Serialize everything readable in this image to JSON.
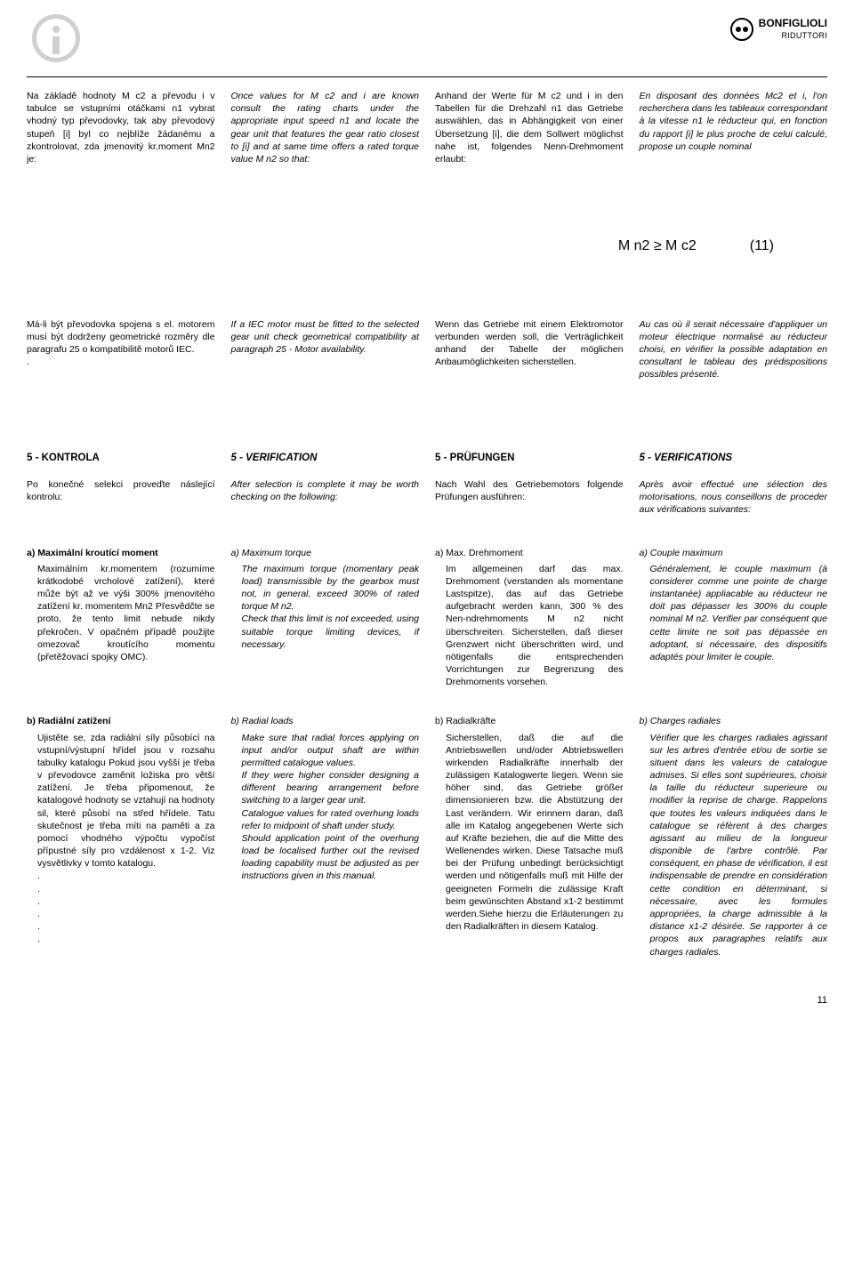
{
  "brand": {
    "name": "BONFIGLIOLI",
    "sub": "RIDUTTORI"
  },
  "block1": {
    "col1": "Na základě hodnoty M c2 a převodu i v tabulce se vstupními otáčkami n1 vybrat vhodný typ převodovky, tak aby převodový stupeň [i] byl co nejblíže žádanému a zkontrolovat, zda jmenovitý kr.moment Mn2 je:",
    "col2": "Once values for M c2 and i are known consult the rating charts under the appropriate input speed n1 and locate the gear unit that features the gear ratio closest to [i] and at same time offers a rated torque value M n2 so that:",
    "col3": "Anhand der Werte für M c2 und i in den Tabellen für die Drehzahl n1 das Getriebe auswählen, das in Abhängigkeit von einer Übersetzung [i], die dem Sollwert möglichst nahe ist, folgendes Nenn-Drehmoment erlaubt:",
    "col4": "En disposant des données Mc2 et i, l'on recherchera dans les tableaux correspondant à la vitesse n1 le réducteur qui, en fonction du rapport [i] le plus proche de celui calculé, propose un couple nominal"
  },
  "formula": {
    "expr": "M n2  ≥  M c2",
    "num": "(11)"
  },
  "block2": {
    "col1": "Má-li být převodovka spojena s el. motorem musí být dodrženy geometrické rozměry dle paragrafu 25 o kompatibilitě motorů IEC.\n.",
    "col2": "If a IEC motor must be fitted to the selected gear unit check geometrical compatibility at paragraph 25 - Motor availability.",
    "col3": "Wenn das Getriebe mit einem Elektromotor verbunden werden soll, die Verträglichkeit anhand der Tabelle der möglichen Anbaumöglichkeiten sicherstellen.",
    "col4": "Au cas où il serait nécessaire d'appliquer un moteur électrique normalisé au réducteur choisi, en vérifier la possible adaptation en consultant le tableau des prédispositions possibles présenté."
  },
  "section": {
    "h1": "5 - KONTROLA",
    "h2": "5 - VERIFICATION",
    "h3": "5 - PRÜFUNGEN",
    "h4": "5 - VERIFICATIONS"
  },
  "intro": {
    "c1": "Po konečné selekci proveďte náslející kontrolu:",
    "c2": "After selection is complete it may be worth checking on the following:",
    "c3": "Nach Wahl des Getriebemotors folgende Prüfungen ausführen:",
    "c4": "Après avoir effectué une sélection des motorisations, nous conseillons de proceder aux vérifications suivantes:"
  },
  "sub_a": {
    "h1": "a) Maximální kroutící moment",
    "h2": "a) Maximum torque",
    "h3": "a) Max. Drehmoment",
    "h4": "a) Couple maximum",
    "c1": "Maximálním kr.momentem (rozumíme krátkodobé vrcholové zatížení), které může být až ve výši 300% jmenovitého zatížení kr. momentem Mn2 Přesvědčte se proto, že tento limit nebude nikdy překročen. V opačném případě použijte omezovač kroutícího momentu (přetěžovací spojky OMC).",
    "c2": "The maximum torque (momentary peak load) transmissible by the gearbox must not, in general, exceed 300% of rated torque M n2.\nCheck that this limit is not exceeded, using suitable torque limiting devices, if necessary.",
    "c3": "Im allgemeinen darf das max. Drehmoment (verstanden als momentane Lastspitze), das auf das Getriebe aufgebracht werden kann, 300 % des Nen-ndrehmoments M n2 nicht überschreiten. Sicherstellen, daß dieser Grenzwert nicht überschritten wird, und nötigenfalls die entsprechenden Vorrichtungen zur Begrenzung des Drehmoments vorsehen.",
    "c4": "Généralement, le couple maximum (à considerer comme une pointe de charge instantanée) appliacable au réducteur ne doit pas dépasser les 300% du couple nominal M n2. Verifier par conséquent que cette limite ne soit pas dépassée en adoptant, si nécessaire, des dispositifs adaptés pour limiter le couple."
  },
  "sub_b": {
    "h1": "b) Radiální zatížení",
    "h2": "b) Radial loads",
    "h3": "b) Radialkräfte",
    "h4": "b) Charges radiales",
    "c1": "Ujistěte se, zda radiální síly působící na vstupní/výstupní hřídel jsou v rozsahu tabulky katalogu Pokud jsou vyšší je třeba v převodovce zaměnit ložiska pro větší zatížení. Je třeba připomenout, že katalogové hodnoty se vztahují na hodnoty sil, které působí na střed hřídele. Tatu skutečnost je třeba míti na paměti a za pomocí vhodného výpočtu vypočíst přípustné síly pro vzdálenost x 1-2. Viz vysvětlivky v tomto katalogu.\n.\n.\n.\n.\n.\n.",
    "c2": "Make sure that radial forces applying on input and/or output shaft are within permitted catalogue values.\nIf they were higher consider designing a different bearing arrangement before switching to a larger gear unit.\nCatalogue values for rated overhung loads refer to midpoint of shaft under study.\nShould application point of the overhung load be localised further out the revised loading capability must be adjusted as per instructions given in this manual.",
    "c3": "Sicherstellen, daß die auf die Antriebswellen und/oder Abtriebswellen wirkenden Radialkräfte innerhalb der zulässigen Katalogwerte liegen. Wenn sie höher sind, das Getriebe größer dimensionieren bzw. die Abstützung der Last verändern. Wir erinnern daran, daß alle im Katalog angegebenen Werte sich auf Kräfte beziehen, die auf die Mitte des Wellenendes wirken. Diese Tatsache muß bei der Prüfung unbedingt berücksichtigt werden und nötigenfalls muß mit Hilfe der geeigneten Formeln die zulässige Kraft beim gewünschten Abstand x1-2 bestimmt werden.Siehe hierzu die Erläuterungen zu den Radialkräften in diesem Katalog.",
    "c4": "Vérifier que les charges radiales agissant sur les arbres d'entrée et/ou de sortie se situent dans les valeurs de catalogue admises. Si elles sont supérieures, choisir la taille du réducteur superieure ou modifier la reprise de charge. Rappelons que toutes les valeurs indiquées dans le catalogue se réfèrent à des charges agissant au milieu de la longueur disponible de l'arbre contrôlé. Par conséquent, en phase de vérification, il est indispensable de prendre en considération cette condition en déterminant, si nécessaire, avec les formules appropriées, la charge admissible à la distance x1-2 désirée. Se rapporter à ce propos aux paragraphes relatifs aux charges radiales."
  },
  "page": "11"
}
